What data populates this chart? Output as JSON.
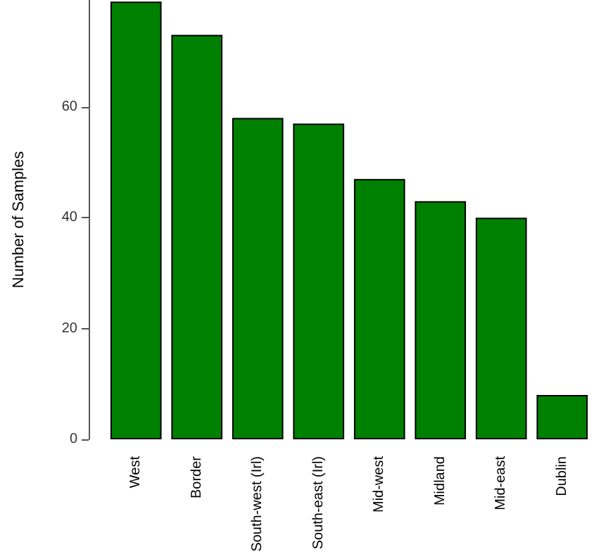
{
  "chart_data": {
    "type": "bar",
    "ylabel": "Number of Samples",
    "categories": [
      "West",
      "Border",
      "South-west (Irl)",
      "South-east (Irl)",
      "Mid-west",
      "Midland",
      "Mid-east",
      "Dublin"
    ],
    "values": [
      79,
      73,
      58,
      57,
      47,
      43,
      40,
      8
    ],
    "color": "#008000",
    "ylim": [
      0,
      79.3
    ],
    "yticks": [
      0,
      20,
      40,
      60
    ],
    "grid": false
  }
}
